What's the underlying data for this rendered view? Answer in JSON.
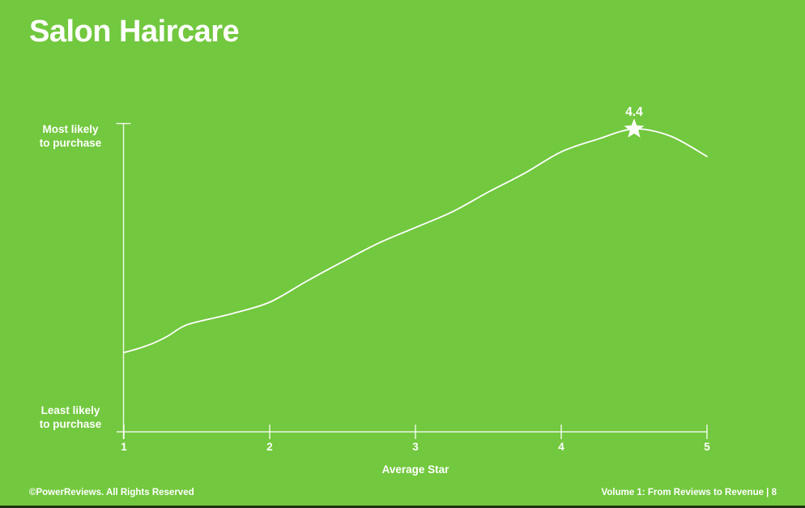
{
  "page": {
    "title": "Salon Haircare",
    "background_color": "#72C83E",
    "bottom_bar_color": "#1E330F"
  },
  "footer": {
    "left": "©PowerReviews. All Rights Reserved",
    "right": "Volume 1: From Reviews to Revenue | 8"
  },
  "chart_data": {
    "type": "line",
    "title": "Salon Haircare",
    "xlabel": "Average Star",
    "y_axis_top_label": [
      "Most likely",
      "to purchase"
    ],
    "y_axis_bottom_label": [
      "Least likely",
      "to purchase"
    ],
    "x": [
      1,
      1.1,
      1.2,
      1.3,
      1.4,
      1.5,
      1.75,
      2,
      2.25,
      2.5,
      2.75,
      3,
      3.25,
      3.5,
      3.75,
      4,
      4.25,
      4.5,
      4.75,
      5
    ],
    "y": [
      0.257,
      0.27,
      0.287,
      0.31,
      0.34,
      0.356,
      0.384,
      0.42,
      0.487,
      0.551,
      0.612,
      0.662,
      0.712,
      0.777,
      0.838,
      0.907,
      0.948,
      0.981,
      0.958,
      0.892
    ],
    "xticks": [
      "1",
      "2",
      "3",
      "4",
      "5"
    ],
    "xlim": [
      1,
      5
    ],
    "ylim": [
      0,
      1
    ],
    "grid": false,
    "legend": false,
    "line_color": "#FFFFFF",
    "axis_color": "#FFFFFF",
    "annotation": {
      "x": 4.5,
      "y": 0.981,
      "label": "4.4",
      "marker": "star-icon",
      "color": "#FFFFFF"
    }
  }
}
